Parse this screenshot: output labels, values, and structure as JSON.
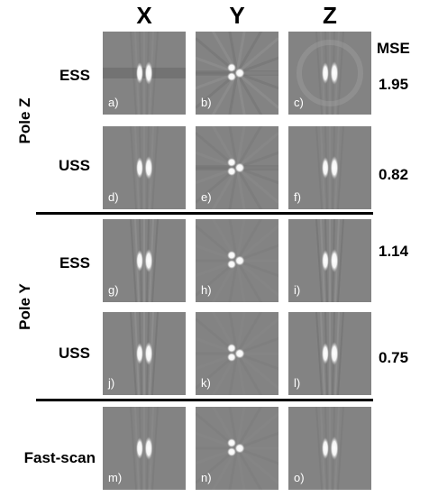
{
  "column_headers": [
    "X",
    "Y",
    "Z"
  ],
  "mse_header": "MSE",
  "groups": [
    {
      "label": "Pole Z",
      "rows": [
        "ESS",
        "USS"
      ]
    },
    {
      "label": "Pole Y",
      "rows": [
        "ESS",
        "USS"
      ]
    }
  ],
  "rows": [
    {
      "label": "ESS",
      "mse": "1.95",
      "panels": [
        "a)",
        "b)",
        "c)"
      ]
    },
    {
      "label": "USS",
      "mse": "0.82",
      "panels": [
        "d)",
        "e)",
        "f)"
      ]
    },
    {
      "label": "ESS",
      "mse": "1.14",
      "panels": [
        "g)",
        "h)",
        "i)"
      ]
    },
    {
      "label": "USS",
      "mse": "0.75",
      "panels": [
        "j)",
        "k)",
        "l)"
      ]
    },
    {
      "label": "Fast-scan",
      "mse": "",
      "panels": [
        "m)",
        "n)",
        "o)"
      ]
    }
  ],
  "colors": {
    "background": "#ffffff",
    "panel_gray": "#838383",
    "blob": "#ffffff",
    "separator": "#000000"
  }
}
